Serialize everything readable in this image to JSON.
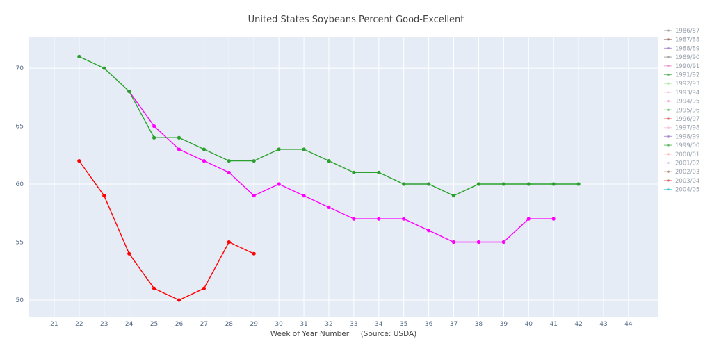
{
  "chart_data": {
    "type": "line",
    "title": "United States Soybeans Percent Good-Excellent",
    "xlabel": "Week of Year Number     (Source: USDA)",
    "ylabel": "",
    "x_ticks": [
      21,
      22,
      23,
      24,
      25,
      26,
      27,
      28,
      29,
      30,
      31,
      32,
      33,
      34,
      35,
      36,
      37,
      38,
      39,
      40,
      41,
      42,
      43,
      44
    ],
    "y_ticks": [
      50,
      55,
      60,
      65,
      70
    ],
    "xlim": [
      20,
      45.2
    ],
    "ylim": [
      48.5,
      72.7
    ],
    "grid": true,
    "plot_bg": "#e5ecf6",
    "legend_position": "right",
    "legend": [
      {
        "name": "1986/87",
        "color": "#7f7f7f"
      },
      {
        "name": "1987/88",
        "color": "#8c564b"
      },
      {
        "name": "1988/89",
        "color": "#9467bd"
      },
      {
        "name": "1989/90",
        "color": "#7f7f7f"
      },
      {
        "name": "1990/91",
        "color": "#e377c2"
      },
      {
        "name": "1991/92",
        "color": "#2ca02c"
      },
      {
        "name": "1992/93",
        "color": "#98df8a"
      },
      {
        "name": "1993/94",
        "color": "#f7b6d2"
      },
      {
        "name": "1994/95",
        "color": "#e377c2"
      },
      {
        "name": "1995/96",
        "color": "#2ca02c"
      },
      {
        "name": "1996/97",
        "color": "#d62728"
      },
      {
        "name": "1997/98",
        "color": "#f7b6d2"
      },
      {
        "name": "1998/99",
        "color": "#9467bd"
      },
      {
        "name": "1999/00",
        "color": "#2ca02c"
      },
      {
        "name": "2000/01",
        "color": "#ff9896"
      },
      {
        "name": "2001/02",
        "color": "#c5b0d5"
      },
      {
        "name": "2002/03",
        "color": "#8c564b"
      },
      {
        "name": "2003/04",
        "color": "#d62728"
      },
      {
        "name": "2004/05",
        "color": "#17becf"
      }
    ],
    "series": [
      {
        "color": "#ff00ff",
        "x": [
          24,
          25,
          26,
          27,
          28,
          29,
          30,
          31,
          32,
          33,
          34,
          35,
          36,
          37,
          38,
          39,
          40,
          41
        ],
        "y": [
          68,
          65,
          63,
          62,
          61,
          59,
          60,
          59,
          58,
          57,
          57,
          57,
          56,
          55,
          55,
          55,
          57,
          57
        ]
      },
      {
        "color": "#2ca02c",
        "x": [
          22,
          23,
          24,
          25,
          26,
          27,
          28,
          29,
          30,
          31,
          32,
          33,
          34,
          35,
          36,
          37,
          38,
          39,
          40,
          41,
          42
        ],
        "y": [
          71,
          70,
          68,
          64,
          64,
          63,
          62,
          62,
          63,
          63,
          62,
          61,
          61,
          60,
          60,
          59,
          60,
          60,
          60,
          60,
          60
        ]
      },
      {
        "color": "#ff0000",
        "x": [
          22,
          23,
          24,
          25,
          26,
          27,
          28,
          29
        ],
        "y": [
          62,
          59,
          54,
          51,
          50,
          51,
          55,
          54
        ]
      }
    ]
  }
}
